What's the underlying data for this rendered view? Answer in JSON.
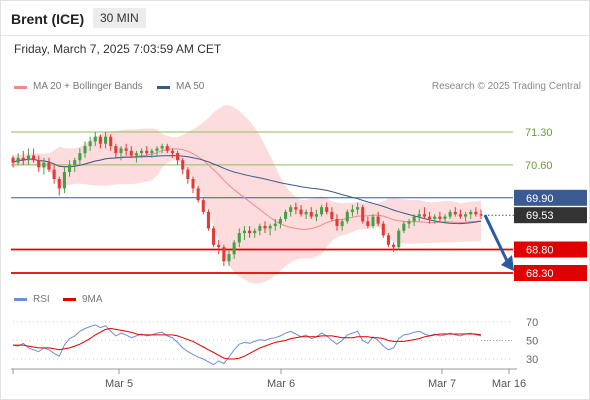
{
  "header": {
    "instrument": "Brent (ICE)",
    "timeframe": "30 MIN",
    "timestamp": "Friday, March 7, 2025 7:03:59 AM CET"
  },
  "legend": {
    "ma20_label": "MA 20 + Bollinger Bands",
    "ma50_label": "MA 50",
    "credit": "Research © 2025 Trading Central"
  },
  "rsi_legend": {
    "rsi_label": "RSI",
    "ma_label": "9MA"
  },
  "colors": {
    "up_candle": "#43a047",
    "down_candle": "#e53935",
    "bollinger_fill": "#fbd0d0",
    "ma20": "#ef8a8a",
    "ma50": "#3a5a8c",
    "resistance": "#8fbf5a",
    "pivot": "#3b5a91",
    "support": "#e00000",
    "rsi": "#6a8fd8",
    "rsi_ma": "#e00000",
    "arrow": "#2a5aa0"
  },
  "chart_data": [
    {
      "type": "candlestick",
      "title": "Brent (ICE)",
      "timeframe": "30 MIN",
      "x_ticks": [
        "Mar 5",
        "Mar 6",
        "Mar 7",
        "Mar 16"
      ],
      "ylim": [
        68.1,
        71.7
      ],
      "price_levels": [
        {
          "label": "71.30",
          "value": 71.3,
          "kind": "resistance"
        },
        {
          "label": "70.60",
          "value": 70.6,
          "kind": "resistance"
        },
        {
          "label": "69.90",
          "value": 69.9,
          "kind": "pivot"
        },
        {
          "label": "68.80",
          "value": 68.8,
          "kind": "support"
        },
        {
          "label": "68.30",
          "value": 68.3,
          "kind": "support"
        }
      ],
      "last_price": {
        "label": "69.53",
        "value": 69.53
      },
      "forecast_target": 68.3,
      "ohlc": [
        [
          70.75,
          70.8,
          70.55,
          70.65
        ],
        [
          70.65,
          70.85,
          70.6,
          70.75
        ],
        [
          70.75,
          70.9,
          70.6,
          70.7
        ],
        [
          70.7,
          70.95,
          70.6,
          70.8
        ],
        [
          70.8,
          70.95,
          70.65,
          70.7
        ],
        [
          70.7,
          70.8,
          70.45,
          70.55
        ],
        [
          70.55,
          70.75,
          70.4,
          70.65
        ],
        [
          70.65,
          70.75,
          70.45,
          70.5
        ],
        [
          70.5,
          70.6,
          70.2,
          70.3
        ],
        [
          70.3,
          70.35,
          69.95,
          70.1
        ],
        [
          70.1,
          70.55,
          70.0,
          70.45
        ],
        [
          70.45,
          70.7,
          70.35,
          70.6
        ],
        [
          70.6,
          70.75,
          70.45,
          70.7
        ],
        [
          70.7,
          70.95,
          70.6,
          70.85
        ],
        [
          70.85,
          71.1,
          70.75,
          71.0
        ],
        [
          71.0,
          71.2,
          70.9,
          71.1
        ],
        [
          71.1,
          71.3,
          71.0,
          71.2
        ],
        [
          71.2,
          71.25,
          70.95,
          71.05
        ],
        [
          71.05,
          71.3,
          70.95,
          71.2
        ],
        [
          71.2,
          71.25,
          70.9,
          71.0
        ],
        [
          71.0,
          71.05,
          70.75,
          70.85
        ],
        [
          70.85,
          71.0,
          70.7,
          70.95
        ],
        [
          70.95,
          71.05,
          70.8,
          70.9
        ],
        [
          70.9,
          71.0,
          70.75,
          70.8
        ],
        [
          70.8,
          70.9,
          70.65,
          70.85
        ],
        [
          70.85,
          70.95,
          70.75,
          70.9
        ],
        [
          70.9,
          71.0,
          70.8,
          70.85
        ],
        [
          70.85,
          70.95,
          70.75,
          70.9
        ],
        [
          70.9,
          71.0,
          70.8,
          70.95
        ],
        [
          70.95,
          71.05,
          70.85,
          71.0
        ],
        [
          71.0,
          71.05,
          70.85,
          70.9
        ],
        [
          70.9,
          70.95,
          70.75,
          70.85
        ],
        [
          70.85,
          70.9,
          70.6,
          70.7
        ],
        [
          70.7,
          70.75,
          70.4,
          70.5
        ],
        [
          70.5,
          70.55,
          70.2,
          70.3
        ],
        [
          70.3,
          70.35,
          70.0,
          70.1
        ],
        [
          70.1,
          70.15,
          69.8,
          69.85
        ],
        [
          69.85,
          69.9,
          69.55,
          69.6
        ],
        [
          69.6,
          69.65,
          69.2,
          69.25
        ],
        [
          69.25,
          69.3,
          68.85,
          68.9
        ],
        [
          68.9,
          69.0,
          68.7,
          68.85
        ],
        [
          68.85,
          68.9,
          68.45,
          68.55
        ],
        [
          68.55,
          68.8,
          68.45,
          68.7
        ],
        [
          68.7,
          69.0,
          68.6,
          68.95
        ],
        [
          68.95,
          69.25,
          68.85,
          69.15
        ],
        [
          69.15,
          69.3,
          69.0,
          69.2
        ],
        [
          69.2,
          69.3,
          69.05,
          69.15
        ],
        [
          69.15,
          69.25,
          69.05,
          69.2
        ],
        [
          69.2,
          69.35,
          69.1,
          69.3
        ],
        [
          69.3,
          69.4,
          69.15,
          69.25
        ],
        [
          69.25,
          69.35,
          69.1,
          69.3
        ],
        [
          69.3,
          69.45,
          69.2,
          69.35
        ],
        [
          69.35,
          69.5,
          69.25,
          69.45
        ],
        [
          69.45,
          69.65,
          69.4,
          69.6
        ],
        [
          69.6,
          69.75,
          69.5,
          69.7
        ],
        [
          69.7,
          69.8,
          69.55,
          69.65
        ],
        [
          69.65,
          69.75,
          69.5,
          69.55
        ],
        [
          69.55,
          69.65,
          69.45,
          69.6
        ],
        [
          69.6,
          69.7,
          69.45,
          69.5
        ],
        [
          69.5,
          69.65,
          69.4,
          69.55
        ],
        [
          69.55,
          69.75,
          69.5,
          69.7
        ],
        [
          69.7,
          69.8,
          69.55,
          69.6
        ],
        [
          69.6,
          69.7,
          69.4,
          69.45
        ],
        [
          69.45,
          69.55,
          69.2,
          69.3
        ],
        [
          69.3,
          69.45,
          69.2,
          69.4
        ],
        [
          69.4,
          69.65,
          69.35,
          69.6
        ],
        [
          69.6,
          69.75,
          69.5,
          69.65
        ],
        [
          69.65,
          69.8,
          69.55,
          69.7
        ],
        [
          69.7,
          69.75,
          69.35,
          69.4
        ],
        [
          69.4,
          69.5,
          69.25,
          69.3
        ],
        [
          69.3,
          69.55,
          69.25,
          69.5
        ],
        [
          69.5,
          69.6,
          69.3,
          69.35
        ],
        [
          69.35,
          69.4,
          69.05,
          69.1
        ],
        [
          69.1,
          69.15,
          68.85,
          68.9
        ],
        [
          68.9,
          68.95,
          68.75,
          68.85
        ],
        [
          68.85,
          69.25,
          68.8,
          69.2
        ],
        [
          69.2,
          69.4,
          69.15,
          69.35
        ],
        [
          69.35,
          69.45,
          69.25,
          69.4
        ],
        [
          69.4,
          69.55,
          69.3,
          69.5
        ],
        [
          69.5,
          69.65,
          69.4,
          69.55
        ],
        [
          69.55,
          69.7,
          69.45,
          69.5
        ],
        [
          69.5,
          69.6,
          69.35,
          69.45
        ],
        [
          69.45,
          69.55,
          69.35,
          69.5
        ],
        [
          69.5,
          69.6,
          69.4,
          69.45
        ],
        [
          69.45,
          69.55,
          69.35,
          69.5
        ],
        [
          69.5,
          69.65,
          69.45,
          69.6
        ],
        [
          69.6,
          69.7,
          69.5,
          69.55
        ],
        [
          69.55,
          69.65,
          69.45,
          69.5
        ],
        [
          69.5,
          69.6,
          69.4,
          69.55
        ],
        [
          69.55,
          69.65,
          69.45,
          69.6
        ],
        [
          69.6,
          69.7,
          69.5,
          69.55
        ],
        [
          69.55,
          69.65,
          69.45,
          69.53
        ]
      ]
    },
    {
      "type": "line",
      "title": "RSI",
      "yticks": [
        70,
        50,
        30
      ],
      "ylim": [
        20,
        80
      ],
      "series": [
        {
          "name": "RSI",
          "values": [
            45,
            44,
            47,
            42,
            40,
            38,
            42,
            40,
            36,
            33,
            45,
            52,
            55,
            60,
            63,
            65,
            67,
            64,
            66,
            60,
            55,
            58,
            56,
            53,
            55,
            57,
            55,
            56,
            58,
            59,
            55,
            53,
            48,
            42,
            38,
            35,
            32,
            30,
            27,
            24,
            28,
            25,
            32,
            40,
            46,
            48,
            47,
            49,
            51,
            50,
            52,
            53,
            55,
            58,
            60,
            57,
            54,
            56,
            52,
            54,
            58,
            55,
            50,
            46,
            50,
            56,
            58,
            60,
            50,
            47,
            54,
            50,
            44,
            40,
            42,
            52,
            56,
            57,
            59,
            60,
            57,
            55,
            57,
            55,
            56,
            58,
            56,
            55,
            57,
            58,
            56,
            55
          ]
        },
        {
          "name": "9MA",
          "values": [
            45,
            45,
            45,
            44,
            43,
            42,
            42,
            42,
            41,
            40,
            41,
            42,
            44,
            46,
            49,
            52,
            56,
            59,
            62,
            63,
            62,
            61,
            60,
            59,
            57,
            56,
            56,
            56,
            56,
            56,
            56,
            56,
            55,
            53,
            51,
            49,
            46,
            43,
            40,
            37,
            34,
            31,
            30,
            30,
            31,
            33,
            36,
            39,
            42,
            44,
            46,
            48,
            49,
            50,
            52,
            53,
            54,
            54,
            54,
            54,
            55,
            55,
            55,
            54,
            53,
            53,
            53,
            54,
            54,
            54,
            53,
            53,
            52,
            50,
            49,
            49,
            49,
            50,
            51,
            52,
            54,
            55,
            56,
            57,
            57,
            57,
            57,
            57,
            57,
            57,
            57,
            56
          ]
        }
      ]
    }
  ]
}
